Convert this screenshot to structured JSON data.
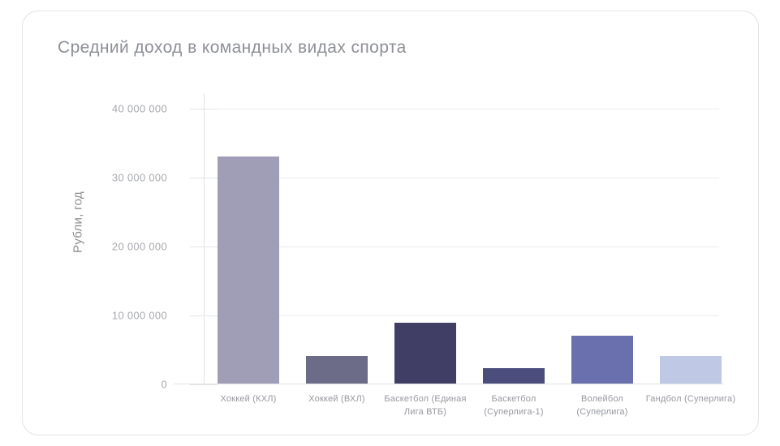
{
  "card": {
    "background": "#ffffff",
    "border_color": "#e3e4e7"
  },
  "theme": {
    "title_color": "#8d9096",
    "axis_label_color": "#8a8d92",
    "tick_label_color": "#a7a9ae",
    "x_label_color": "#96989f",
    "axis_line_color": "#e3e4e7",
    "gridline_color": "#ededf0"
  },
  "chart_data": {
    "type": "bar",
    "title": "Средний доход в командных видах спорта",
    "xlabel": "",
    "ylabel": "Рубли, год",
    "ylim": [
      0,
      40000000
    ],
    "grid": true,
    "legend": "none",
    "categories": [
      "Хоккей (КХЛ)",
      "Хоккей (ВХЛ)",
      "Баскетбол (Единая Лига ВТБ)",
      "Баскетбол (Суперлига-1)",
      "Волейбол (Суперлига)",
      "Гандбол (Суперлига)"
    ],
    "values": [
      32900000,
      4000000,
      8800000,
      2200000,
      7000000,
      4000000
    ],
    "bar_colors": [
      "#a09eb6",
      "#6d6c88",
      "#403e64",
      "#4b4e7d",
      "#6a6fae",
      "#bfc9e6"
    ],
    "yticks": [
      {
        "value": 0,
        "label": "0"
      },
      {
        "value": 10000000,
        "label": "10 000 000"
      },
      {
        "value": 20000000,
        "label": "20 000 000"
      },
      {
        "value": 30000000,
        "label": "30 000 000"
      },
      {
        "value": 40000000,
        "label": "40 000 000"
      }
    ]
  }
}
